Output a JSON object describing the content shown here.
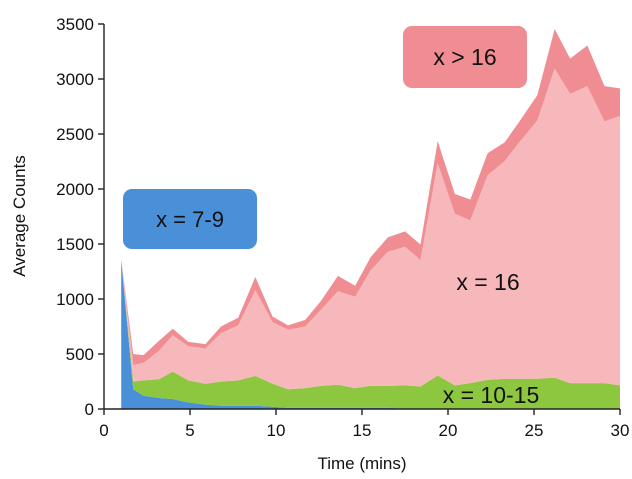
{
  "chart_data": {
    "type": "area",
    "stacked": true,
    "xlabel": "Time (mins)",
    "ylabel": "Average Counts",
    "xlim": [
      0,
      30
    ],
    "ylim": [
      0,
      3500
    ],
    "xticks": [
      "0",
      "5",
      "10",
      "15",
      "20",
      "25",
      "30"
    ],
    "yticks": [
      "0",
      "500",
      "1000",
      "1500",
      "2000",
      "2500",
      "3000",
      "3500"
    ],
    "grid": false,
    "legend": "none",
    "x": [
      1,
      1.7,
      2.3,
      3.2,
      4,
      4.9,
      5.9,
      6.8,
      7.8,
      8.8,
      9.8,
      10.7,
      11.7,
      12.6,
      13.6,
      14.6,
      15.5,
      16.5,
      17.5,
      18.4,
      19.4,
      20.4,
      21.3,
      22.3,
      23.3,
      24.2,
      25.2,
      26.2,
      27.1,
      28.1,
      29.1,
      30
    ],
    "series": [
      {
        "name": "x = 7-9",
        "color": "#4a90d9",
        "values": [
          1360,
          180,
          120,
          100,
          90,
          60,
          40,
          30,
          30,
          30,
          20,
          10,
          10,
          10,
          10,
          10,
          10,
          10,
          5,
          5,
          5,
          5,
          5,
          5,
          5,
          5,
          5,
          5,
          5,
          5,
          5,
          5
        ]
      },
      {
        "name": "x = 10-15",
        "color": "#8dc63f",
        "values": [
          0,
          70,
          140,
          170,
          250,
          200,
          190,
          220,
          230,
          270,
          210,
          170,
          180,
          200,
          210,
          180,
          200,
          200,
          210,
          200,
          300,
          210,
          230,
          260,
          270,
          270,
          270,
          280,
          230,
          230,
          230,
          210
        ]
      },
      {
        "name": "x = 16",
        "color": "#f7b8bc",
        "values": [
          0,
          150,
          160,
          260,
          330,
          310,
          320,
          440,
          500,
          780,
          560,
          540,
          560,
          690,
          850,
          830,
          1050,
          1220,
          1260,
          1150,
          1930,
          1560,
          1480,
          1860,
          1980,
          2160,
          2350,
          2810,
          2630,
          2700,
          2380,
          2450
        ]
      },
      {
        "name": "x > 16",
        "color": "#ef8d93",
        "values": [
          0,
          100,
          70,
          90,
          60,
          40,
          40,
          60,
          70,
          120,
          50,
          40,
          60,
          80,
          140,
          100,
          120,
          130,
          140,
          140,
          200,
          180,
          190,
          200,
          170,
          190,
          230,
          360,
          320,
          370,
          320,
          250
        ]
      }
    ],
    "annotations": [
      {
        "text": "x = 7-9",
        "series": "x = 7-9",
        "boxed": true
      },
      {
        "text": "x > 16",
        "series": "x > 16",
        "boxed": true
      },
      {
        "text": "x = 16",
        "series": "x = 16",
        "boxed": false
      },
      {
        "text": "x = 10-15",
        "series": "x = 10-15",
        "boxed": false
      }
    ]
  }
}
